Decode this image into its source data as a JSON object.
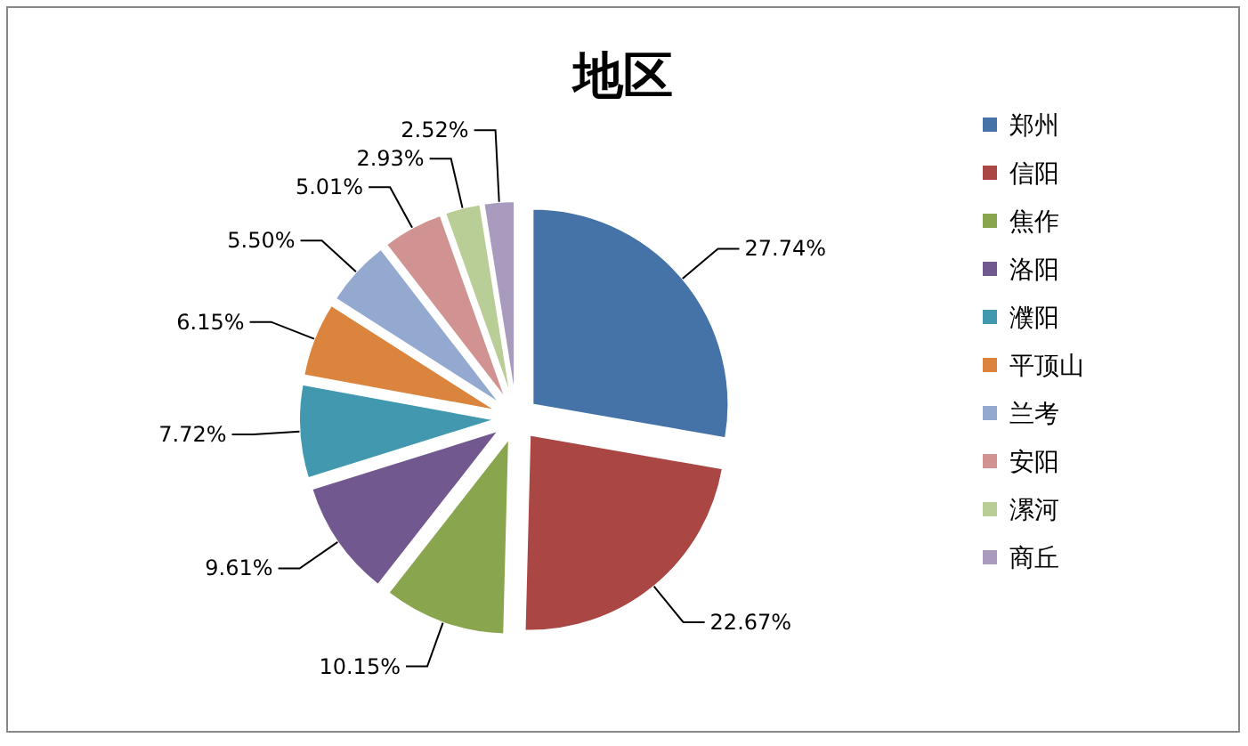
{
  "chart_data": {
    "type": "pie",
    "title": "地区",
    "categories": [
      "郑州",
      "信阳",
      "焦作",
      "洛阳",
      "濮阳",
      "平顶山",
      "兰考",
      "安阳",
      "漯河",
      "商丘"
    ],
    "values": [
      27.74,
      22.67,
      10.15,
      9.61,
      7.72,
      6.15,
      5.5,
      5.01,
      2.93,
      2.52
    ],
    "value_labels": [
      "27.74%",
      "22.67%",
      "10.15%",
      "9.61%",
      "7.72%",
      "6.15%",
      "5.50%",
      "5.01%",
      "2.93%",
      "2.52%"
    ],
    "colors": [
      "#4572a7",
      "#aa4643",
      "#89a54e",
      "#71588f",
      "#4198af",
      "#db843d",
      "#93a9cf",
      "#d19392",
      "#b9cd96",
      "#a99bbd"
    ],
    "legend": "right"
  }
}
